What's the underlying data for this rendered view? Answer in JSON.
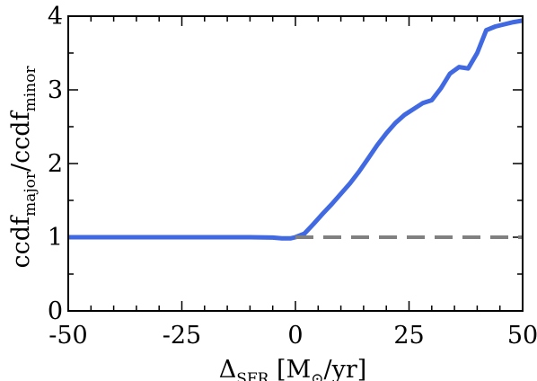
{
  "chart_data": {
    "type": "line",
    "xlim": [
      -50,
      50
    ],
    "ylim": [
      0,
      4
    ],
    "x_ticks": [
      -50,
      -25,
      0,
      25,
      50
    ],
    "x_tick_labels": [
      "-50",
      "-25",
      "0",
      "25",
      "50"
    ],
    "y_ticks": [
      0,
      1,
      2,
      3,
      4
    ],
    "y_tick_labels": [
      "0",
      "1",
      "2",
      "3",
      "4"
    ],
    "x_minor_step": 5,
    "y_minor_step": 0.5,
    "grid": false,
    "xlabel": {
      "main": "Δ",
      "sub": "SFR",
      "rest": " [M",
      "sub2": "⊙",
      "end": "/yr]"
    },
    "ylabel": {
      "a": "ccdf",
      "a_sub": "major",
      "b": "/ccdf",
      "b_sub": "minor"
    },
    "series": [
      {
        "style": "solid",
        "color": "#4169e1",
        "x": [
          -50,
          -40,
          -30,
          -20,
          -10,
          -5,
          -3,
          -1,
          0,
          2,
          4,
          6,
          8,
          10,
          12,
          14,
          16,
          18,
          20,
          22,
          24,
          26,
          28,
          30,
          32,
          34,
          36,
          38,
          40,
          42,
          44,
          46,
          48,
          50
        ],
        "y": [
          1.0,
          1.0,
          1.0,
          1.0,
          1.0,
          0.995,
          0.985,
          0.985,
          1.0,
          1.05,
          1.18,
          1.32,
          1.45,
          1.59,
          1.73,
          1.89,
          2.07,
          2.25,
          2.41,
          2.55,
          2.66,
          2.74,
          2.82,
          2.86,
          3.02,
          3.22,
          3.31,
          3.29,
          3.5,
          3.81,
          3.86,
          3.89,
          3.92,
          3.94
        ]
      },
      {
        "style": "dashed",
        "color": "#808080",
        "x": [
          0,
          50
        ],
        "y": [
          1.0,
          1.0
        ]
      }
    ]
  }
}
